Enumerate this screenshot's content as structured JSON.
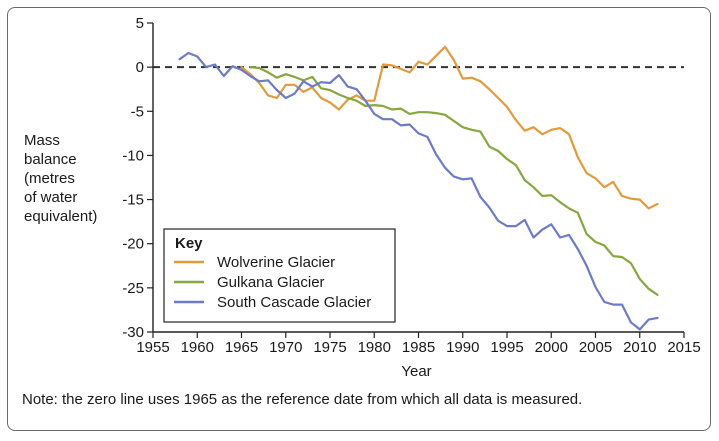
{
  "chart_data": {
    "type": "line",
    "title": "",
    "xlabel": "Year",
    "ylabel_lines": [
      "Mass",
      "balance",
      "(metres",
      "of water",
      "equivalent)"
    ],
    "xlim": [
      1955,
      2015
    ],
    "ylim": [
      -30,
      5
    ],
    "xticks": [
      1955,
      1960,
      1965,
      1970,
      1975,
      1980,
      1985,
      1990,
      1995,
      2000,
      2005,
      2010,
      2015
    ],
    "yticks": [
      5,
      0,
      -5,
      -10,
      -15,
      -20,
      -25,
      -30
    ],
    "zero_line": true,
    "legend": {
      "title": "Key",
      "placement": "bottom-left",
      "entries": [
        "Wolverine Glacier",
        "Gulkana Glacier",
        "South Cascade Glacier"
      ]
    },
    "series": [
      {
        "name": "Wolverine Glacier",
        "color": "#e39a3c",
        "x": [
          1965,
          1966,
          1967,
          1968,
          1969,
          1970,
          1971,
          1972,
          1973,
          1974,
          1975,
          1976,
          1977,
          1978,
          1979,
          1980,
          1981,
          1982,
          1983,
          1984,
          1985,
          1986,
          1987,
          1988,
          1989,
          1990,
          1991,
          1992,
          1993,
          1994,
          1995,
          1996,
          1997,
          1998,
          1999,
          2000,
          2001,
          2002,
          2003,
          2004,
          2005,
          2006,
          2007,
          2008,
          2009,
          2010,
          2011,
          2012
        ],
        "y": [
          0,
          -0.8,
          -1.8,
          -3.2,
          -3.5,
          -2.0,
          -2.0,
          -2.8,
          -2.3,
          -3.5,
          -4.0,
          -4.8,
          -3.7,
          -3.2,
          -3.8,
          -3.8,
          0.3,
          0.2,
          -0.2,
          -0.6,
          0.6,
          0.3,
          1.3,
          2.3,
          0.8,
          -1.3,
          -1.2,
          -1.6,
          -2.5,
          -3.5,
          -4.5,
          -6.0,
          -7.2,
          -6.8,
          -7.6,
          -7.1,
          -6.9,
          -7.6,
          -10.2,
          -12.0,
          -12.6,
          -13.6,
          -13.0,
          -14.6,
          -14.9,
          -15.0,
          -16.0,
          -15.5
        ]
      },
      {
        "name": "Gulkana Glacier",
        "color": "#86a740",
        "x": [
          1966,
          1967,
          1968,
          1969,
          1970,
          1971,
          1972,
          1973,
          1974,
          1975,
          1976,
          1977,
          1978,
          1979,
          1980,
          1981,
          1982,
          1983,
          1984,
          1985,
          1986,
          1987,
          1988,
          1989,
          1990,
          1991,
          1992,
          1993,
          1994,
          1995,
          1996,
          1997,
          1998,
          1999,
          2000,
          2001,
          2002,
          2003,
          2004,
          2005,
          2006,
          2007,
          2008,
          2009,
          2010,
          2011,
          2012
        ],
        "y": [
          0,
          -0.1,
          -0.6,
          -1.2,
          -0.8,
          -1.1,
          -1.5,
          -1.1,
          -2.4,
          -2.6,
          -3.1,
          -3.5,
          -3.8,
          -4.4,
          -4.3,
          -4.4,
          -4.8,
          -4.7,
          -5.3,
          -5.1,
          -5.1,
          -5.2,
          -5.4,
          -6.1,
          -6.8,
          -7.1,
          -7.3,
          -9.0,
          -9.5,
          -10.4,
          -11.1,
          -12.8,
          -13.6,
          -14.6,
          -14.5,
          -15.3,
          -16.0,
          -16.5,
          -18.9,
          -19.8,
          -20.2,
          -21.4,
          -21.5,
          -22.2,
          -24.0,
          -25.1,
          -25.8
        ]
      },
      {
        "name": "South Cascade Glacier",
        "color": "#6d7bc6",
        "x": [
          1958,
          1959,
          1960,
          1961,
          1962,
          1963,
          1964,
          1965,
          1966,
          1967,
          1968,
          1969,
          1970,
          1971,
          1972,
          1973,
          1974,
          1975,
          1976,
          1977,
          1978,
          1979,
          1980,
          1981,
          1982,
          1983,
          1984,
          1985,
          1986,
          1987,
          1988,
          1989,
          1990,
          1991,
          1992,
          1993,
          1994,
          1995,
          1996,
          1997,
          1998,
          1999,
          2000,
          2001,
          2002,
          2003,
          2004,
          2005,
          2006,
          2007,
          2008,
          2009,
          2010,
          2011,
          2012
        ],
        "y": [
          0.9,
          1.6,
          1.2,
          0.0,
          0.3,
          -1.0,
          0.1,
          -0.3,
          -1.0,
          -1.6,
          -1.5,
          -2.6,
          -3.5,
          -3.0,
          -1.6,
          -2.2,
          -1.7,
          -1.8,
          -0.9,
          -2.2,
          -2.5,
          -3.8,
          -5.3,
          -5.9,
          -5.9,
          -6.6,
          -6.5,
          -7.5,
          -7.9,
          -9.9,
          -11.4,
          -12.4,
          -12.7,
          -12.6,
          -14.7,
          -15.9,
          -17.4,
          -18.0,
          -18.0,
          -17.3,
          -19.3,
          -18.4,
          -17.8,
          -19.3,
          -19.0,
          -20.6,
          -22.5,
          -24.9,
          -26.6,
          -26.9,
          -26.9,
          -28.9,
          -29.7,
          -28.6,
          -28.4
        ]
      }
    ]
  },
  "note": "Note: the zero line uses 1965 as the reference date from which all data is measured."
}
